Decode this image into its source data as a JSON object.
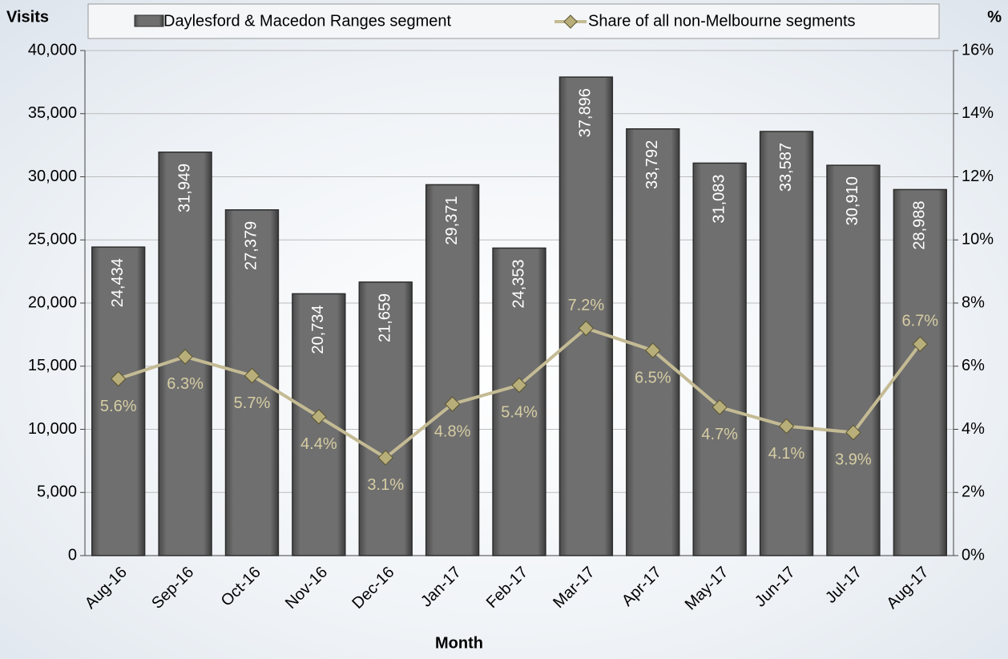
{
  "chart_data": {
    "type": "bar_line",
    "y_axis_label": "Visits",
    "y2_axis_label": "%",
    "x_axis_label": "Month",
    "categories": [
      "Aug-16",
      "Sep-16",
      "Oct-16",
      "Nov-16",
      "Dec-16",
      "Jan-17",
      "Feb-17",
      "Mar-17",
      "Apr-17",
      "May-17",
      "Jun-17",
      "Jul-17",
      "Aug-17"
    ],
    "series": [
      {
        "name": "Daylesford & Macedon Ranges segment",
        "type": "bar",
        "color": "#6e6e6e",
        "values": [
          24434,
          31949,
          27379,
          20734,
          21659,
          29371,
          24353,
          37896,
          33792,
          31083,
          33587,
          30910,
          28988
        ],
        "value_labels": [
          "24,434",
          "31,949",
          "27,379",
          "20,734",
          "21,659",
          "29,371",
          "24,353",
          "37,896",
          "33,792",
          "31,083",
          "33,587",
          "30,910",
          "28,988"
        ]
      },
      {
        "name": "Share of all non-Melbourne segments",
        "type": "line",
        "axis": "y2",
        "color": "#c4bb94",
        "values": [
          5.6,
          6.3,
          5.7,
          4.4,
          3.1,
          4.8,
          5.4,
          7.2,
          6.5,
          4.7,
          4.1,
          3.9,
          6.7
        ],
        "value_labels": [
          "5.6%",
          "6.3%",
          "5.7%",
          "4.4%",
          "3.1%",
          "4.8%",
          "5.4%",
          "7.2%",
          "6.5%",
          "4.7%",
          "4.1%",
          "3.9%",
          "6.7%"
        ]
      }
    ],
    "ylim": [
      0,
      40000
    ],
    "yticks": [
      0,
      {
        "value": 5000,
        "label": "5,000"
      },
      {
        "value": 10000,
        "label": "10,000"
      },
      {
        "value": 15000,
        "label": "15,000"
      },
      {
        "value": 20000,
        "label": "20,000"
      },
      {
        "value": 25000,
        "label": "25,000"
      },
      {
        "value": 30000,
        "label": "30,000"
      },
      {
        "value": 35000,
        "label": "35,000"
      },
      {
        "value": 40000,
        "label": "40,000"
      }
    ],
    "y2lim": [
      0,
      16
    ],
    "y2ticks": [
      {
        "value": 0,
        "label": "0%"
      },
      {
        "value": 2,
        "label": "2%"
      },
      {
        "value": 4,
        "label": "4%"
      },
      {
        "value": 6,
        "label": "6%"
      },
      {
        "value": 8,
        "label": "8%"
      },
      {
        "value": 10,
        "label": "10%"
      },
      {
        "value": 12,
        "label": "12%"
      },
      {
        "value": 14,
        "label": "14%"
      },
      {
        "value": 16,
        "label": "16%"
      }
    ],
    "grid": true
  }
}
